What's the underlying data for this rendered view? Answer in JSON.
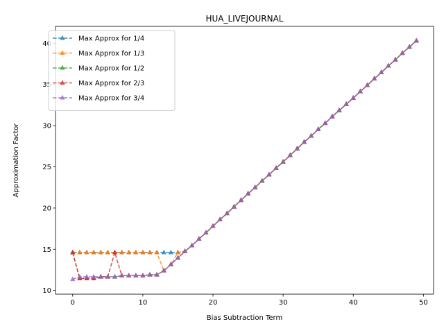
{
  "chart_data": {
    "type": "line",
    "title": "HUA_LIVEJOURNAL",
    "xlabel": "Bias Subtraction Term",
    "ylabel": "Approximation Factor",
    "xlim": [
      -2.45,
      51.45
    ],
    "ylim": [
      9.55,
      42.05
    ],
    "xticks": [
      0,
      10,
      20,
      30,
      40,
      50
    ],
    "yticks": [
      10,
      15,
      20,
      25,
      30,
      35,
      40
    ],
    "grid": false,
    "legend_placement": "top-left",
    "marker": "triangle-up",
    "line_style": "dashed",
    "x": [
      0,
      1,
      2,
      3,
      4,
      5,
      6,
      7,
      8,
      9,
      10,
      11,
      12,
      13,
      14,
      15,
      16,
      17,
      18,
      19,
      20,
      21,
      22,
      23,
      24,
      25,
      26,
      27,
      28,
      29,
      30,
      31,
      32,
      33,
      34,
      35,
      36,
      37,
      38,
      39,
      40,
      41,
      42,
      43,
      44,
      45,
      46,
      47,
      48,
      49
    ],
    "series": [
      {
        "name": "Max Approx for 1/4",
        "color": "#1f77b4",
        "values": [
          14.6,
          14.6,
          14.6,
          14.6,
          14.6,
          14.6,
          14.6,
          14.6,
          14.6,
          14.6,
          14.6,
          14.6,
          14.6,
          14.6,
          14.6,
          14.6,
          14.75,
          15.45,
          16.25,
          17.0,
          17.8,
          18.6,
          19.35,
          20.15,
          20.95,
          21.75,
          22.5,
          23.3,
          24.05,
          24.85,
          25.6,
          26.4,
          27.2,
          28.0,
          28.75,
          29.55,
          30.3,
          31.1,
          31.85,
          32.6,
          33.35,
          34.15,
          34.9,
          35.7,
          36.45,
          37.25,
          38.0,
          38.8,
          39.55,
          40.3
        ]
      },
      {
        "name": "Max Approx for 1/3",
        "color": "#ff7f0e",
        "values": [
          14.6,
          14.6,
          14.6,
          14.6,
          14.6,
          14.6,
          14.6,
          14.6,
          14.6,
          14.6,
          14.6,
          14.6,
          14.6,
          12.4,
          13.15,
          14.6,
          14.75,
          15.45,
          16.25,
          17.0,
          17.8,
          18.6,
          19.35,
          20.15,
          20.95,
          21.75,
          22.5,
          23.3,
          24.05,
          24.85,
          25.6,
          26.4,
          27.2,
          28.0,
          28.75,
          29.55,
          30.3,
          31.1,
          31.85,
          32.6,
          33.35,
          34.15,
          34.9,
          35.7,
          36.45,
          37.25,
          38.0,
          38.8,
          39.55,
          40.3
        ]
      },
      {
        "name": "Max Approx for 1/2",
        "color": "#2ca02c",
        "values": [
          14.6,
          11.45,
          11.45,
          11.45,
          11.65,
          11.65,
          11.65,
          11.8,
          11.8,
          11.8,
          11.8,
          11.9,
          11.9,
          12.4,
          13.15,
          13.95,
          14.75,
          15.45,
          16.25,
          17.0,
          17.8,
          18.6,
          19.35,
          20.15,
          20.95,
          21.75,
          22.5,
          23.3,
          24.05,
          24.85,
          25.6,
          26.4,
          27.2,
          28.0,
          28.75,
          29.55,
          30.3,
          31.1,
          31.85,
          32.6,
          33.35,
          34.15,
          34.9,
          35.7,
          36.45,
          37.25,
          38.0,
          38.8,
          39.55,
          40.3
        ]
      },
      {
        "name": "Max Approx for 2/3",
        "color": "#d62728",
        "values": [
          14.6,
          11.45,
          11.45,
          11.45,
          11.65,
          11.65,
          14.6,
          11.8,
          11.8,
          11.8,
          11.8,
          11.9,
          11.9,
          12.4,
          13.15,
          13.95,
          14.75,
          15.45,
          16.25,
          17.0,
          17.8,
          18.6,
          19.35,
          20.15,
          20.95,
          21.75,
          22.5,
          23.3,
          24.05,
          24.85,
          25.6,
          26.4,
          27.2,
          28.0,
          28.75,
          29.55,
          30.3,
          31.1,
          31.85,
          32.6,
          33.35,
          34.15,
          34.9,
          35.7,
          36.45,
          37.25,
          38.0,
          38.8,
          39.55,
          40.3
        ]
      },
      {
        "name": "Max Approx for 3/4",
        "color": "#9467bd",
        "values": [
          11.35,
          11.65,
          11.65,
          11.65,
          11.65,
          11.65,
          11.65,
          11.8,
          11.8,
          11.8,
          11.8,
          11.9,
          11.9,
          12.4,
          13.15,
          13.95,
          14.75,
          15.45,
          16.25,
          17.0,
          17.8,
          18.6,
          19.35,
          20.15,
          20.95,
          21.75,
          22.5,
          23.3,
          24.05,
          24.85,
          25.6,
          26.4,
          27.2,
          28.0,
          28.75,
          29.55,
          30.3,
          31.1,
          31.85,
          32.6,
          33.35,
          34.15,
          34.9,
          35.7,
          36.45,
          37.25,
          38.0,
          38.8,
          39.55,
          40.3
        ]
      }
    ]
  }
}
